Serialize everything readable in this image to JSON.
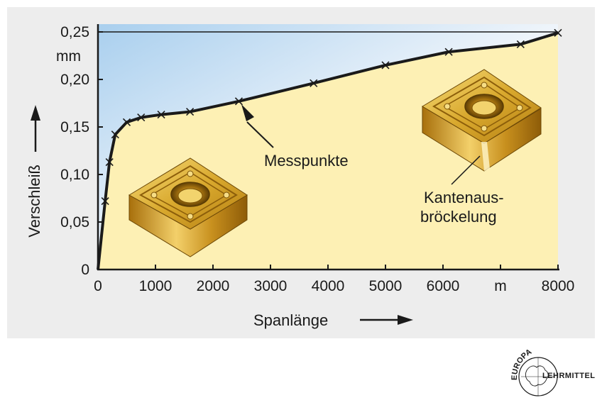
{
  "chart_data": {
    "type": "line",
    "xlabel": "Spanlänge",
    "ylabel": "Verschleiß",
    "xlim": [
      0,
      8000
    ],
    "ylim": [
      0,
      0.25
    ],
    "x_ticks": [
      "0",
      "1000",
      "2000",
      "3000",
      "4000",
      "5000",
      "6000",
      "m",
      "8000"
    ],
    "y_ticks": [
      "0",
      "0,05",
      "0,10",
      "0,15",
      "0,20",
      "0,25"
    ],
    "y_unit": "mm",
    "series": [
      {
        "x": [
          0,
          125,
          200,
          300,
          500,
          750,
          1100,
          1600,
          2450,
          3750,
          5000,
          6100,
          7350,
          8000
        ],
        "y": [
          0.0,
          0.072,
          0.113,
          0.142,
          0.155,
          0.16,
          0.163,
          0.166,
          0.177,
          0.196,
          0.215,
          0.229,
          0.237,
          0.249
        ]
      }
    ],
    "marker": "x",
    "grid": false,
    "colors": {
      "line": "#1a1a1a",
      "fill_under": "#fdf0b4",
      "fill_above_top": "#a9cfee",
      "fill_above_bottom": "#f5f8fc",
      "insert_gold": "#d9a92e"
    },
    "annotations": [
      {
        "text": "Messpunkte",
        "x": 2450,
        "y": 0.177
      },
      {
        "text": "Kantenaus-",
        "x": 6500,
        "y": 0.165
      },
      {
        "text": "bröckelung",
        "x": 6500,
        "y": 0.165
      }
    ]
  },
  "logo": {
    "text_top": "EUROPA",
    "text_right": "LEHRMITTEL"
  }
}
